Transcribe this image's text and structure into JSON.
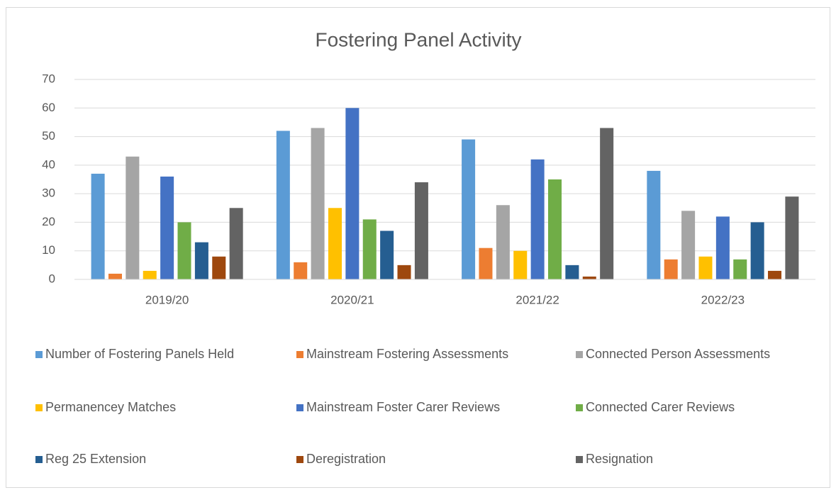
{
  "chart_data": {
    "type": "bar",
    "title": "Fostering Panel Activity",
    "categories": [
      "2019/20",
      "2020/21",
      "2021/22",
      "2022/23"
    ],
    "series": [
      {
        "name": "Number of Fostering Panels Held",
        "color": "#5b9bd5",
        "values": [
          37,
          52,
          49,
          38
        ]
      },
      {
        "name": "Mainstream Fostering Assessments",
        "color": "#ed7d31",
        "values": [
          2,
          6,
          11,
          7
        ]
      },
      {
        "name": "Connected Person Assessments",
        "color": "#a5a5a5",
        "values": [
          43,
          53,
          26,
          24
        ]
      },
      {
        "name": "Permanencey Matches",
        "color": "#ffc000",
        "values": [
          3,
          25,
          10,
          8
        ]
      },
      {
        "name": "Mainstream Foster Carer Reviews",
        "color": "#4472c4",
        "values": [
          36,
          60,
          42,
          22
        ]
      },
      {
        "name": "Connected Carer Reviews",
        "color": "#70ad47",
        "values": [
          20,
          21,
          35,
          7
        ]
      },
      {
        "name": "Reg 25 Extension",
        "color": "#255e91",
        "values": [
          13,
          17,
          5,
          20
        ]
      },
      {
        "name": "Deregistration",
        "color": "#9e480e",
        "values": [
          8,
          5,
          1,
          3
        ]
      },
      {
        "name": "Resignation",
        "color": "#636363",
        "values": [
          25,
          34,
          53,
          29
        ]
      }
    ],
    "ylim": [
      0,
      70
    ],
    "yticks": [
      0,
      10,
      20,
      30,
      40,
      50,
      60,
      70
    ],
    "grid": true,
    "legend": "bottom"
  }
}
